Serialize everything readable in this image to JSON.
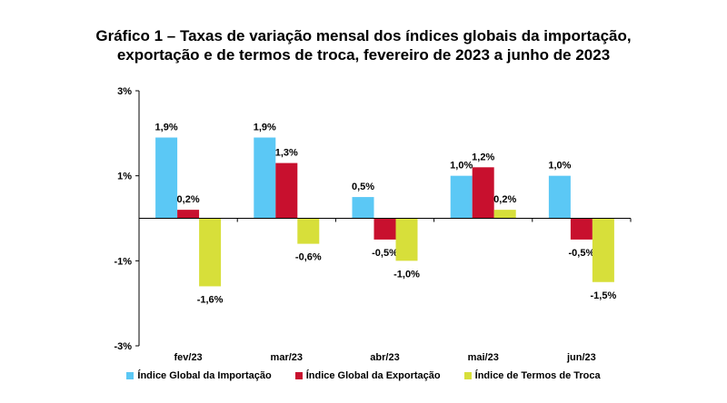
{
  "chart_data": {
    "type": "bar",
    "title_line1": "Gráfico 1 – Taxas de variação mensal dos índices globais da importação,",
    "title_line2": "exportação e de termos de troca, fevereiro de 2023 a junho de 2023",
    "categories": [
      "fev/23",
      "mar/23",
      "abr/23",
      "mai/23",
      "jun/23"
    ],
    "series": [
      {
        "name": "Índice Global da Importação",
        "color": "#5BC8F5",
        "values": [
          1.9,
          1.9,
          0.5,
          1.0,
          1.0
        ],
        "labels": [
          "1,9%",
          "1,9%",
          "0,5%",
          "1,0%",
          "1,0%"
        ]
      },
      {
        "name": "Índice Global da Exportação",
        "color": "#C8102E",
        "values": [
          0.2,
          1.3,
          -0.5,
          1.2,
          -0.5
        ],
        "labels": [
          "0,2%",
          "1,3%",
          "-0,5%",
          "1,2%",
          "-0,5%"
        ]
      },
      {
        "name": "Índice de Termos de Troca",
        "color": "#D7DF3A",
        "values": [
          -1.6,
          -0.6,
          -1.0,
          0.2,
          -1.5
        ],
        "labels": [
          "-1,6%",
          "-0,6%",
          "-1,0%",
          "0,2%",
          "-1,5%"
        ]
      }
    ],
    "ylim": [
      -3,
      3
    ],
    "yticks": [
      3,
      1,
      -1,
      -3
    ],
    "ytick_labels": [
      "3%",
      "1%",
      "-1%",
      "-3%"
    ],
    "grid": false,
    "legend_position": "bottom"
  }
}
